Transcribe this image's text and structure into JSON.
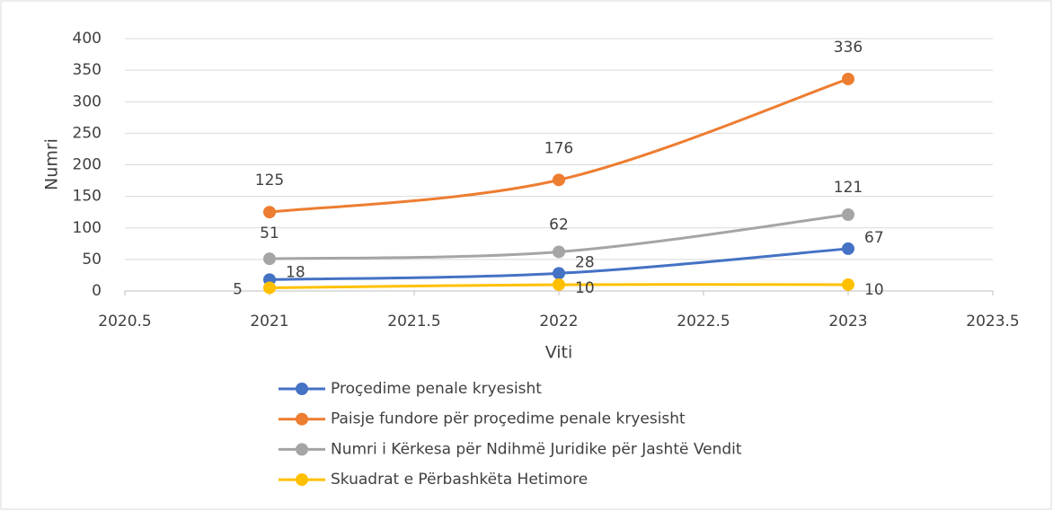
{
  "chart_data": {
    "type": "scatter",
    "x_label": "Viti",
    "y_label": "Numri",
    "x": [
      2021,
      2022,
      2023
    ],
    "series": [
      {
        "name": "Proçedime penale kryesisht",
        "color": "#4472c4",
        "values": [
          18,
          28,
          67
        ]
      },
      {
        "name": "Paisje fundore për proçedime penale kryesisht",
        "color": "#ed7d31",
        "values": [
          125,
          176,
          336
        ]
      },
      {
        "name": "Numri i Kërkesa për Ndihmë Juridike për Jashtë Vendit",
        "color": "#a5a5a5",
        "values": [
          51,
          62,
          121
        ]
      },
      {
        "name": "Skuadrat e Përbashkëta Hetimore",
        "color": "#ffc000",
        "values": [
          5,
          10,
          10
        ]
      }
    ],
    "xlim": [
      2020.5,
      2023.5
    ],
    "xticks": [
      2020.5,
      2021,
      2021.5,
      2022,
      2022.5,
      2023,
      2023.5
    ],
    "ylim": [
      0,
      400
    ],
    "yticks": [
      0,
      50,
      100,
      150,
      200,
      250,
      300,
      350,
      400
    ],
    "grid": true,
    "smooth": true,
    "legend": "bottom"
  }
}
